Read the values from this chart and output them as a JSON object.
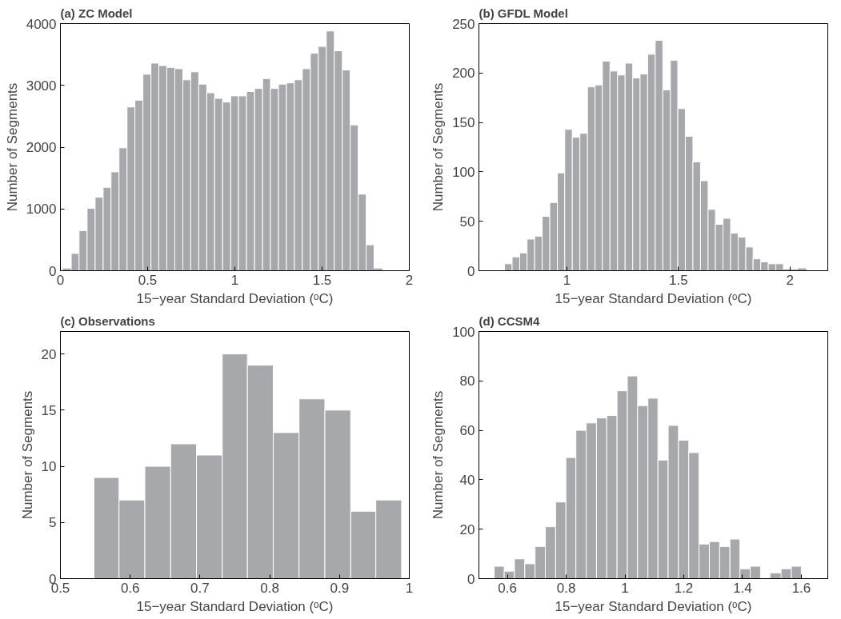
{
  "chart_data": [
    {
      "type": "histogram",
      "title": "(a) ZC Model",
      "xlabel": "15−year Standard Deviation (ᵒC)",
      "ylabel": "Number of Segments",
      "color": "#a7a8ab",
      "bins": [
        0.016,
        0.062,
        0.107,
        0.153,
        0.199,
        0.245,
        0.29,
        0.336,
        0.382,
        0.427,
        0.473,
        0.519,
        0.564,
        0.61,
        0.656,
        0.702,
        0.747,
        0.793,
        0.839,
        0.884,
        0.93,
        0.976,
        1.021,
        1.067,
        1.113,
        1.159,
        1.204,
        1.25,
        1.296,
        1.341,
        1.387,
        1.433,
        1.478,
        1.524,
        1.57,
        1.616,
        1.661,
        1.707,
        1.753,
        1.798,
        1.844
      ],
      "values": [
        30,
        280,
        650,
        1010,
        1190,
        1350,
        1600,
        1990,
        2650,
        2760,
        3180,
        3360,
        3320,
        3290,
        3270,
        3090,
        3220,
        3020,
        2880,
        2790,
        2730,
        2830,
        2830,
        2900,
        2950,
        3110,
        2950,
        3020,
        3040,
        3090,
        3270,
        3520,
        3630,
        3880,
        3560,
        3250,
        2360,
        1240,
        420,
        30
      ],
      "xlim": [
        0,
        2
      ],
      "xticks": [
        0,
        0.5,
        1,
        1.5,
        2
      ],
      "ylim": [
        0,
        4000
      ],
      "yticks": [
        0,
        1000,
        2000,
        3000,
        4000
      ],
      "grid": false
    },
    {
      "type": "histogram",
      "title": "(b) GFDL Model",
      "xlabel": "15−year Standard Deviation (ᵒC)",
      "ylabel": "Number of Segments",
      "color": "#a7a8ab",
      "bins": [
        0.72,
        0.754,
        0.788,
        0.821,
        0.855,
        0.889,
        0.923,
        0.957,
        0.99,
        1.024,
        1.058,
        1.092,
        1.126,
        1.159,
        1.193,
        1.227,
        1.261,
        1.295,
        1.328,
        1.362,
        1.396,
        1.43,
        1.464,
        1.497,
        1.531,
        1.565,
        1.599,
        1.633,
        1.666,
        1.7,
        1.734,
        1.768,
        1.802,
        1.835,
        1.869,
        1.903,
        1.937,
        1.971,
        2.004,
        2.038,
        2.072
      ],
      "values": [
        7,
        14,
        18,
        32,
        35,
        55,
        69,
        99,
        143,
        135,
        139,
        186,
        188,
        212,
        202,
        198,
        210,
        195,
        199,
        219,
        233,
        183,
        213,
        164,
        136,
        110,
        91,
        62,
        47,
        53,
        38,
        34,
        24,
        12,
        9,
        7,
        7,
        1,
        1,
        2
      ],
      "xlim": [
        0.605,
        2.17
      ],
      "xticks": [
        1,
        1.5,
        2
      ],
      "ylim": [
        0,
        250
      ],
      "yticks": [
        0,
        50,
        100,
        150,
        200,
        250
      ],
      "grid": false
    },
    {
      "type": "histogram",
      "title": "(c) Observations",
      "xlabel": "15−year Standard Deviation (ᵒC)",
      "ylabel": "Number of Segments",
      "color": "#a7a8ab",
      "bins": [
        0.548,
        0.584,
        0.621,
        0.658,
        0.695,
        0.732,
        0.768,
        0.805,
        0.842,
        0.879,
        0.916,
        0.952,
        0.989
      ],
      "values": [
        9,
        7,
        10,
        12,
        11,
        20,
        19,
        13,
        16,
        15,
        6,
        7
      ],
      "xlim": [
        0.5,
        1
      ],
      "xticks": [
        0.5,
        0.6,
        0.7,
        0.8,
        0.9,
        1
      ],
      "ylim": [
        0,
        22
      ],
      "yticks": [
        0,
        5,
        10,
        15,
        20
      ],
      "grid": false
    },
    {
      "type": "histogram",
      "title": "(d) CCSM4",
      "xlabel": "15−year Standard Deviation (ᵒC)",
      "ylabel": "Number of Segments",
      "color": "#a7a8ab",
      "bins": [
        0.555,
        0.589,
        0.624,
        0.659,
        0.694,
        0.729,
        0.764,
        0.799,
        0.833,
        0.868,
        0.903,
        0.938,
        0.973,
        1.008,
        1.043,
        1.078,
        1.112,
        1.147,
        1.182,
        1.217,
        1.252,
        1.287,
        1.322,
        1.357,
        1.391,
        1.426,
        1.461,
        1.496,
        1.531,
        1.566,
        1.6
      ],
      "values": [
        5,
        3,
        8,
        6,
        13,
        21,
        31,
        49,
        60,
        63,
        65,
        66,
        76,
        82,
        70,
        73,
        48,
        62,
        56,
        51,
        14,
        15,
        13,
        16,
        4,
        5,
        0,
        2,
        4,
        5
      ],
      "xlim": [
        0.503,
        1.69
      ],
      "xticks": [
        0.6,
        0.8,
        1,
        1.2,
        1.4,
        1.6
      ],
      "ylim": [
        0,
        100
      ],
      "yticks": [
        0,
        20,
        40,
        60,
        80,
        100
      ],
      "grid": false
    }
  ]
}
